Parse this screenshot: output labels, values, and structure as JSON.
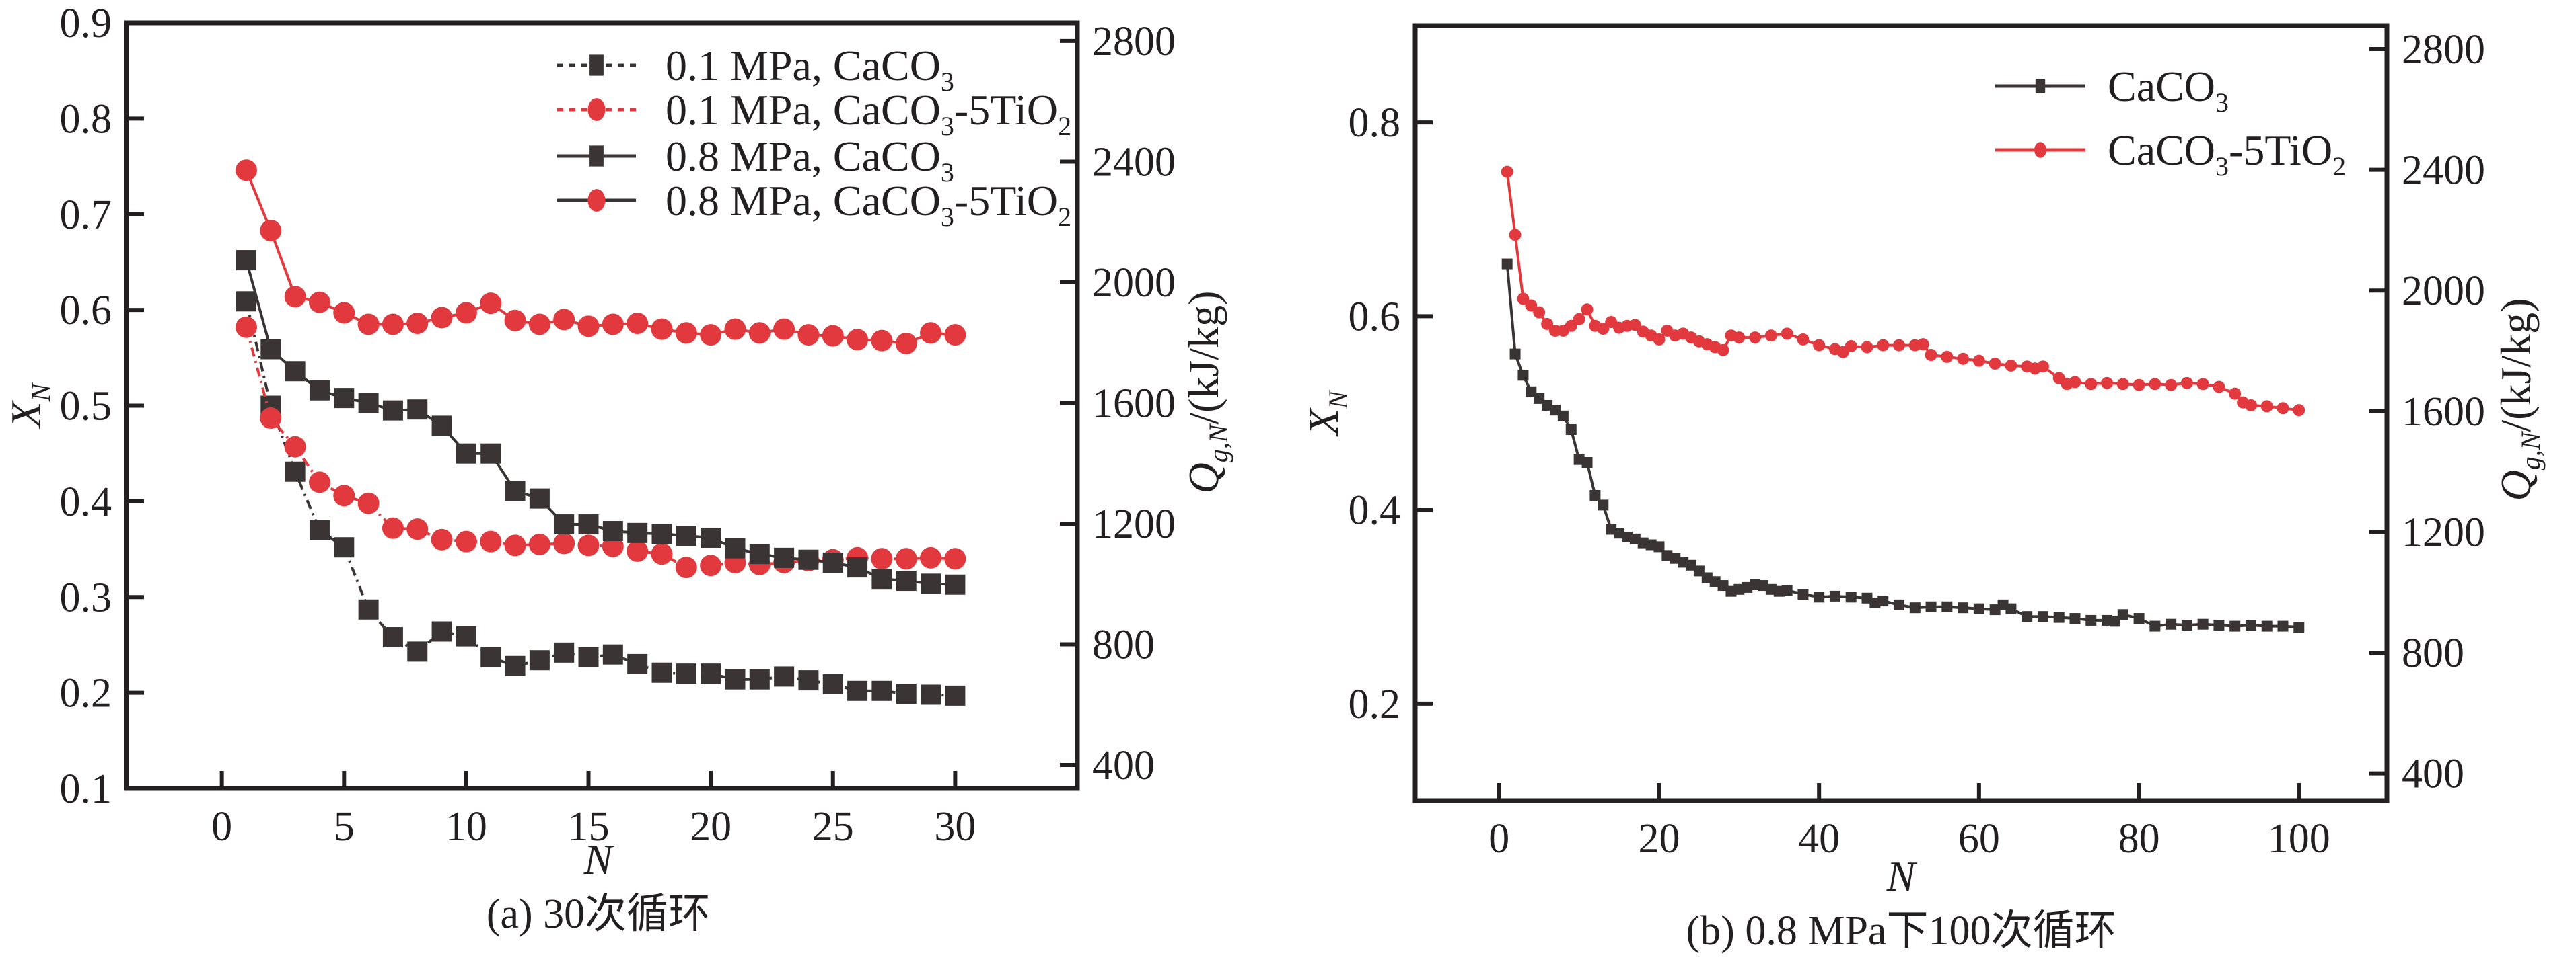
{
  "figure": {
    "colors": {
      "black_series": "#3a3534",
      "red_series": "#e2393f",
      "axis": "#231f20"
    }
  },
  "chart_data": [
    {
      "id": "a",
      "type": "line",
      "caption": "(a) 30次循环",
      "xlabel": "N",
      "ylabel": "X_N",
      "ylabel_parts": {
        "main": "X",
        "sub": "N"
      },
      "y2label": "Q_g,N/(kJ/kg)",
      "y2label_parts": {
        "main": "Q",
        "sub": "g,N",
        "unit": "/(kJ/kg)"
      },
      "xlim": [
        -3.9,
        35
      ],
      "ylim": [
        0.1,
        0.9
      ],
      "y2lim": [
        322,
        2860
      ],
      "xticks": [
        0,
        5,
        10,
        15,
        20,
        25,
        30
      ],
      "yticks": [
        0.1,
        0.2,
        0.3,
        0.4,
        0.5,
        0.6,
        0.7,
        0.8,
        0.9
      ],
      "yticks_drawn": [
        0.2,
        0.3,
        0.4,
        0.5,
        0.6,
        0.7,
        0.8
      ],
      "yticklabels": [
        "0.1",
        "0.2",
        "0.3",
        "0.4",
        "0.5",
        "0.6",
        "0.7",
        "0.8",
        "0.9"
      ],
      "y2ticks": [
        400,
        800,
        1200,
        1600,
        2000,
        2400,
        2800
      ],
      "legend_position": "top-right",
      "grid": false,
      "x": [
        1,
        2,
        3,
        4,
        5,
        6,
        7,
        8,
        9,
        10,
        11,
        12,
        13,
        14,
        15,
        16,
        17,
        18,
        19,
        20,
        21,
        22,
        23,
        24,
        25,
        26,
        27,
        28,
        29,
        30
      ],
      "series": [
        {
          "name": "0.1 MPa, CaCO3",
          "label_parts": [
            "0.1 MPa, CaCO",
            "3",
            ""
          ],
          "color": "#3a3534",
          "marker": "square",
          "line": "dash",
          "values": [
            0.609,
            0.5,
            0.431,
            0.37,
            0.352,
            0.287,
            0.258,
            0.243,
            0.264,
            0.259,
            0.237,
            0.228,
            0.234,
            0.242,
            0.237,
            0.24,
            0.23,
            0.221,
            0.22,
            0.22,
            0.214,
            0.214,
            0.217,
            0.213,
            0.209,
            0.202,
            0.202,
            0.199,
            0.198,
            0.197
          ]
        },
        {
          "name": "0.1 MPa, CaCO3-5TiO2",
          "label_parts": [
            "0.1 MPa, CaCO",
            "3",
            "-5TiO",
            "2"
          ],
          "color": "#e2393f",
          "marker": "circle",
          "line": "dash",
          "values": [
            0.582,
            0.487,
            0.457,
            0.42,
            0.406,
            0.398,
            0.372,
            0.371,
            0.36,
            0.358,
            0.358,
            0.354,
            0.355,
            0.356,
            0.354,
            0.353,
            0.348,
            0.345,
            0.331,
            0.333,
            0.336,
            0.334,
            0.336,
            0.338,
            0.339,
            0.341,
            0.34,
            0.34,
            0.341,
            0.34
          ]
        },
        {
          "name": "0.8 MPa, CaCO3",
          "label_parts": [
            "0.8 MPa, CaCO",
            "3",
            ""
          ],
          "color": "#3a3534",
          "marker": "square",
          "line": "solid",
          "values": [
            0.652,
            0.559,
            0.536,
            0.516,
            0.508,
            0.503,
            0.495,
            0.496,
            0.479,
            0.45,
            0.45,
            0.411,
            0.403,
            0.376,
            0.376,
            0.369,
            0.367,
            0.366,
            0.364,
            0.362,
            0.351,
            0.345,
            0.341,
            0.339,
            0.336,
            0.331,
            0.319,
            0.317,
            0.314,
            0.313
          ]
        },
        {
          "name": "0.8 MPa, CaCO3-5TiO2",
          "label_parts": [
            "0.8 MPa, CaCO",
            "3",
            "-5TiO",
            "2"
          ],
          "color": "#e2393f",
          "legend_line_color": "#3a3534",
          "marker": "circle",
          "line": "solid",
          "values": [
            0.746,
            0.683,
            0.614,
            0.608,
            0.597,
            0.585,
            0.585,
            0.586,
            0.592,
            0.597,
            0.607,
            0.589,
            0.585,
            0.59,
            0.583,
            0.585,
            0.586,
            0.58,
            0.576,
            0.574,
            0.58,
            0.576,
            0.58,
            0.574,
            0.573,
            0.569,
            0.568,
            0.565,
            0.576,
            0.574
          ]
        }
      ]
    },
    {
      "id": "b",
      "type": "line",
      "caption": "(b) 0.8 MPa下100次循环",
      "xlabel": "N",
      "ylabel": "X_N",
      "ylabel_parts": {
        "main": "X",
        "sub": "N"
      },
      "y2label": "Q_g,N/(kJ/kg)",
      "y2label_parts": {
        "main": "Q",
        "sub": "g,N",
        "unit": "/(kJ/kg)"
      },
      "xlim": [
        -10.5,
        111
      ],
      "ylim": [
        0.1,
        0.9
      ],
      "y2lim": [
        310,
        2878
      ],
      "xticks": [
        0,
        20,
        40,
        60,
        80,
        100
      ],
      "yticks": [
        0.2,
        0.4,
        0.6,
        0.8
      ],
      "yticks_drawn": [
        0.2,
        0.4,
        0.6,
        0.8
      ],
      "yticklabels": [
        "0.2",
        "0.4",
        "0.6",
        "0.8"
      ],
      "y2ticks": [
        400,
        800,
        1200,
        1600,
        2000,
        2400,
        2800
      ],
      "legend_position": "top-right",
      "grid": false,
      "series": [
        {
          "name": "CaCO3",
          "label_parts": [
            "CaCO",
            "3",
            ""
          ],
          "color": "#3a3534",
          "marker": "square",
          "line": "solid",
          "points": [
            [
              1,
              0.654
            ],
            [
              2,
              0.561
            ],
            [
              3,
              0.539
            ],
            [
              4,
              0.522
            ],
            [
              5,
              0.515
            ],
            [
              6,
              0.508
            ],
            [
              7,
              0.503
            ],
            [
              8,
              0.497
            ],
            [
              9,
              0.483
            ],
            [
              10,
              0.452
            ],
            [
              11,
              0.449
            ],
            [
              12,
              0.415
            ],
            [
              13,
              0.405
            ],
            [
              14,
              0.38
            ],
            [
              15,
              0.376
            ],
            [
              16,
              0.372
            ],
            [
              17,
              0.37
            ],
            [
              18,
              0.366
            ],
            [
              19,
              0.364
            ],
            [
              20,
              0.362
            ],
            [
              21,
              0.353
            ],
            [
              22,
              0.35
            ],
            [
              23,
              0.346
            ],
            [
              24,
              0.343
            ],
            [
              25,
              0.337
            ],
            [
              26,
              0.33
            ],
            [
              27,
              0.326
            ],
            [
              28,
              0.322
            ],
            [
              29,
              0.316
            ],
            [
              30,
              0.318
            ],
            [
              31,
              0.32
            ],
            [
              32,
              0.323
            ],
            [
              33,
              0.322
            ],
            [
              34,
              0.318
            ],
            [
              35,
              0.316
            ],
            [
              36,
              0.317
            ],
            [
              38,
              0.313
            ],
            [
              40,
              0.31
            ],
            [
              42,
              0.311
            ],
            [
              44,
              0.31
            ],
            [
              46,
              0.309
            ],
            [
              47,
              0.304
            ],
            [
              48,
              0.306
            ],
            [
              50,
              0.302
            ],
            [
              52,
              0.299
            ],
            [
              54,
              0.3
            ],
            [
              56,
              0.3
            ],
            [
              58,
              0.299
            ],
            [
              60,
              0.298
            ],
            [
              62,
              0.297
            ],
            [
              63,
              0.302
            ],
            [
              64,
              0.298
            ],
            [
              66,
              0.29
            ],
            [
              68,
              0.29
            ],
            [
              70,
              0.289
            ],
            [
              72,
              0.288
            ],
            [
              74,
              0.286
            ],
            [
              76,
              0.286
            ],
            [
              77,
              0.285
            ],
            [
              78,
              0.292
            ],
            [
              80,
              0.288
            ],
            [
              82,
              0.28
            ],
            [
              84,
              0.282
            ],
            [
              86,
              0.281
            ],
            [
              88,
              0.282
            ],
            [
              90,
              0.281
            ],
            [
              92,
              0.28
            ],
            [
              94,
              0.281
            ],
            [
              96,
              0.28
            ],
            [
              98,
              0.28
            ],
            [
              100,
              0.279
            ]
          ]
        },
        {
          "name": "CaCO3-5TiO2",
          "label_parts": [
            "CaCO",
            "3",
            "-5TiO",
            "2"
          ],
          "color": "#e2393f",
          "marker": "circle",
          "line": "solid",
          "points": [
            [
              1,
              0.749
            ],
            [
              2,
              0.684
            ],
            [
              3,
              0.618
            ],
            [
              4,
              0.611
            ],
            [
              5,
              0.604
            ],
            [
              6,
              0.592
            ],
            [
              7,
              0.585
            ],
            [
              8,
              0.585
            ],
            [
              9,
              0.59
            ],
            [
              10,
              0.597
            ],
            [
              11,
              0.607
            ],
            [
              12,
              0.59
            ],
            [
              13,
              0.587
            ],
            [
              14,
              0.594
            ],
            [
              15,
              0.588
            ],
            [
              16,
              0.59
            ],
            [
              17,
              0.591
            ],
            [
              18,
              0.584
            ],
            [
              19,
              0.58
            ],
            [
              20,
              0.576
            ],
            [
              21,
              0.585
            ],
            [
              22,
              0.58
            ],
            [
              23,
              0.582
            ],
            [
              24,
              0.578
            ],
            [
              25,
              0.574
            ],
            [
              26,
              0.571
            ],
            [
              27,
              0.568
            ],
            [
              28,
              0.565
            ],
            [
              29,
              0.58
            ],
            [
              30,
              0.578
            ],
            [
              32,
              0.578
            ],
            [
              34,
              0.58
            ],
            [
              36,
              0.582
            ],
            [
              38,
              0.576
            ],
            [
              40,
              0.57
            ],
            [
              42,
              0.566
            ],
            [
              43,
              0.563
            ],
            [
              44,
              0.569
            ],
            [
              46,
              0.568
            ],
            [
              48,
              0.57
            ],
            [
              50,
              0.57
            ],
            [
              52,
              0.57
            ],
            [
              53,
              0.571
            ],
            [
              54,
              0.56
            ],
            [
              56,
              0.558
            ],
            [
              58,
              0.556
            ],
            [
              60,
              0.554
            ],
            [
              62,
              0.551
            ],
            [
              64,
              0.549
            ],
            [
              66,
              0.548
            ],
            [
              67,
              0.546
            ],
            [
              68,
              0.548
            ],
            [
              70,
              0.536
            ],
            [
              71,
              0.53
            ],
            [
              72,
              0.532
            ],
            [
              74,
              0.53
            ],
            [
              76,
              0.531
            ],
            [
              78,
              0.53
            ],
            [
              80,
              0.529
            ],
            [
              82,
              0.53
            ],
            [
              84,
              0.529
            ],
            [
              86,
              0.531
            ],
            [
              88,
              0.53
            ],
            [
              90,
              0.527
            ],
            [
              92,
              0.52
            ],
            [
              93,
              0.511
            ],
            [
              94,
              0.508
            ],
            [
              96,
              0.507
            ],
            [
              98,
              0.505
            ],
            [
              100,
              0.503
            ]
          ]
        }
      ]
    }
  ]
}
